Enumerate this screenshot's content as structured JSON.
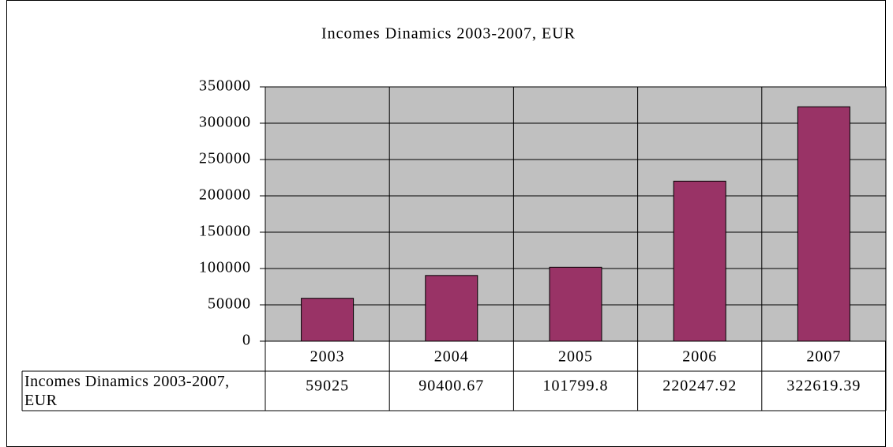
{
  "chart_data": {
    "type": "bar",
    "title": "Incomes Dinamics 2003-2007, EUR",
    "categories": [
      "2003",
      "2004",
      "2005",
      "2006",
      "2007"
    ],
    "series": [
      {
        "name": "Incomes Dinamics 2003-2007, EUR",
        "color": "#993366",
        "values": [
          59025,
          90400.67,
          101799.8,
          220247.92,
          322619.39
        ]
      }
    ],
    "ylim": [
      0,
      350000
    ],
    "yticks": [
      0,
      50000,
      100000,
      150000,
      200000,
      250000,
      300000,
      350000
    ],
    "grid": true,
    "plot_background": "#c0c0c0"
  }
}
